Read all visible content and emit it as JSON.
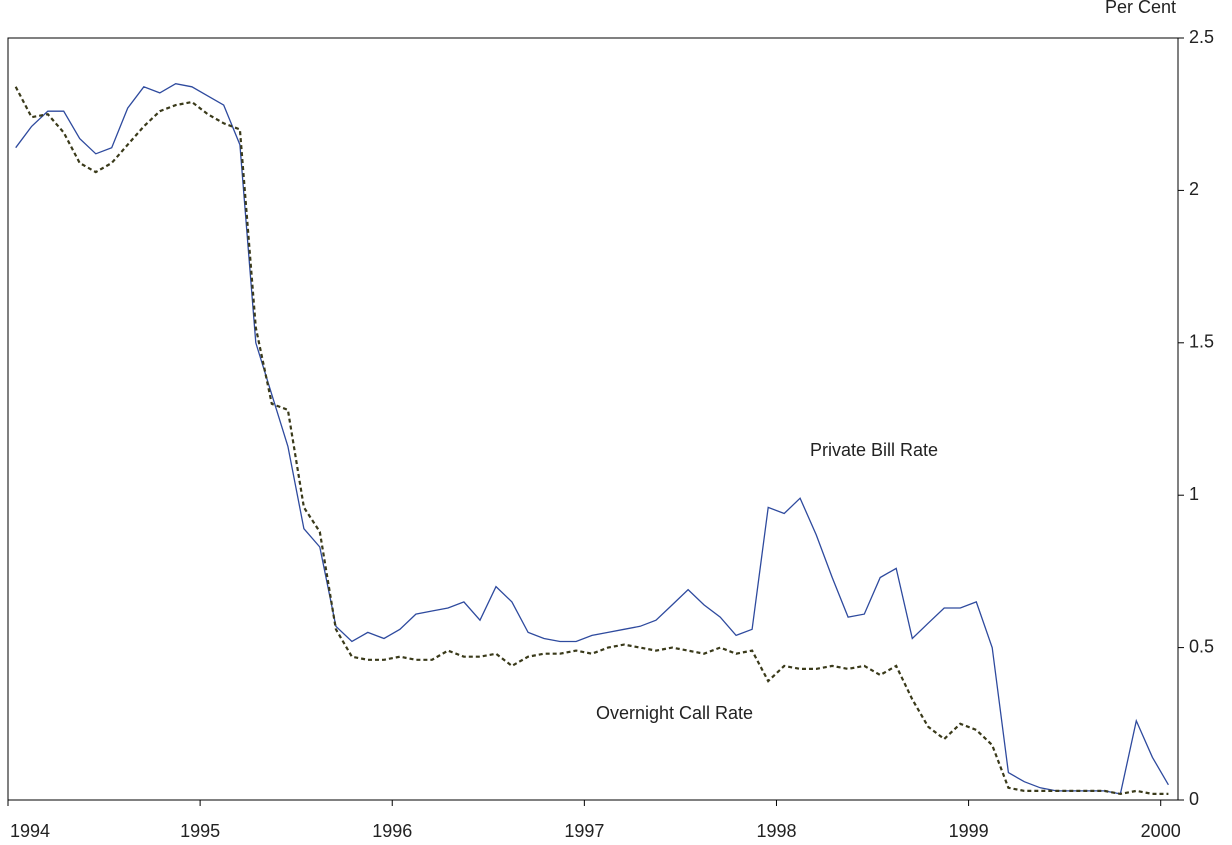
{
  "chart_data": {
    "type": "line",
    "y_axis_label": "Per Cent",
    "annotations": [
      "Private Bill Rate",
      "Overnight Call Rate"
    ],
    "x": [
      1994.04,
      1994.123,
      1994.207,
      1994.29,
      1994.373,
      1994.457,
      1994.54,
      1994.623,
      1994.707,
      1994.79,
      1994.873,
      1994.957,
      1995.04,
      1995.123,
      1995.207,
      1995.29,
      1995.373,
      1995.457,
      1995.54,
      1995.623,
      1995.707,
      1995.79,
      1995.873,
      1995.957,
      1996.04,
      1996.123,
      1996.207,
      1996.29,
      1996.373,
      1996.457,
      1996.54,
      1996.623,
      1996.707,
      1996.79,
      1996.873,
      1996.957,
      1997.04,
      1997.123,
      1997.207,
      1997.29,
      1997.373,
      1997.457,
      1997.54,
      1997.623,
      1997.707,
      1997.79,
      1997.873,
      1997.957,
      1998.04,
      1998.123,
      1998.207,
      1998.29,
      1998.373,
      1998.457,
      1998.54,
      1998.623,
      1998.707,
      1998.79,
      1998.873,
      1998.957,
      1999.04,
      1999.123,
      1999.207,
      1999.29,
      1999.373,
      1999.457,
      1999.54,
      1999.623,
      1999.707,
      1999.79,
      1999.873,
      1999.957,
      2000.04
    ],
    "series": [
      {
        "name": "Private Bill Rate",
        "color": "#2e4a9e",
        "dash": false,
        "values": [
          2.14,
          2.21,
          2.26,
          2.26,
          2.17,
          2.12,
          2.14,
          2.27,
          2.34,
          2.32,
          2.35,
          2.34,
          2.31,
          2.28,
          2.15,
          1.5,
          1.33,
          1.16,
          0.89,
          0.83,
          0.57,
          0.52,
          0.55,
          0.53,
          0.56,
          0.61,
          0.62,
          0.63,
          0.65,
          0.59,
          0.7,
          0.65,
          0.55,
          0.53,
          0.52,
          0.52,
          0.54,
          0.55,
          0.56,
          0.57,
          0.59,
          0.64,
          0.69,
          0.64,
          0.6,
          0.54,
          0.56,
          0.96,
          0.94,
          0.99,
          0.87,
          0.73,
          0.6,
          0.61,
          0.73,
          0.76,
          0.53,
          0.58,
          0.63,
          0.63,
          0.65,
          0.5,
          0.09,
          0.06,
          0.04,
          0.03,
          0.03,
          0.03,
          0.03,
          0.02,
          0.26,
          0.14,
          0.05
        ]
      },
      {
        "name": "Overnight Call Rate",
        "color": "#3a3a1a",
        "dash": true,
        "values": [
          2.34,
          2.24,
          2.25,
          2.19,
          2.09,
          2.06,
          2.09,
          2.15,
          2.21,
          2.26,
          2.28,
          2.29,
          2.25,
          2.22,
          2.2,
          1.55,
          1.3,
          1.28,
          0.96,
          0.88,
          0.56,
          0.47,
          0.46,
          0.46,
          0.47,
          0.46,
          0.46,
          0.49,
          0.47,
          0.47,
          0.48,
          0.44,
          0.47,
          0.48,
          0.48,
          0.49,
          0.48,
          0.5,
          0.51,
          0.5,
          0.49,
          0.5,
          0.49,
          0.48,
          0.5,
          0.48,
          0.49,
          0.39,
          0.44,
          0.43,
          0.43,
          0.44,
          0.43,
          0.44,
          0.41,
          0.44,
          0.33,
          0.24,
          0.2,
          0.25,
          0.23,
          0.18,
          0.04,
          0.03,
          0.03,
          0.03,
          0.03,
          0.03,
          0.03,
          0.02,
          0.03,
          0.02,
          0.02
        ]
      }
    ],
    "xlim": [
      1994,
      2000.09
    ],
    "xticks": [
      1994,
      1995,
      1996,
      1997,
      1998,
      1999,
      2000
    ],
    "ylim": [
      0,
      2.5
    ],
    "yticks": [
      0,
      0.5,
      1,
      1.5,
      2,
      2.5
    ],
    "y_axis_side": "right",
    "grid": false
  }
}
